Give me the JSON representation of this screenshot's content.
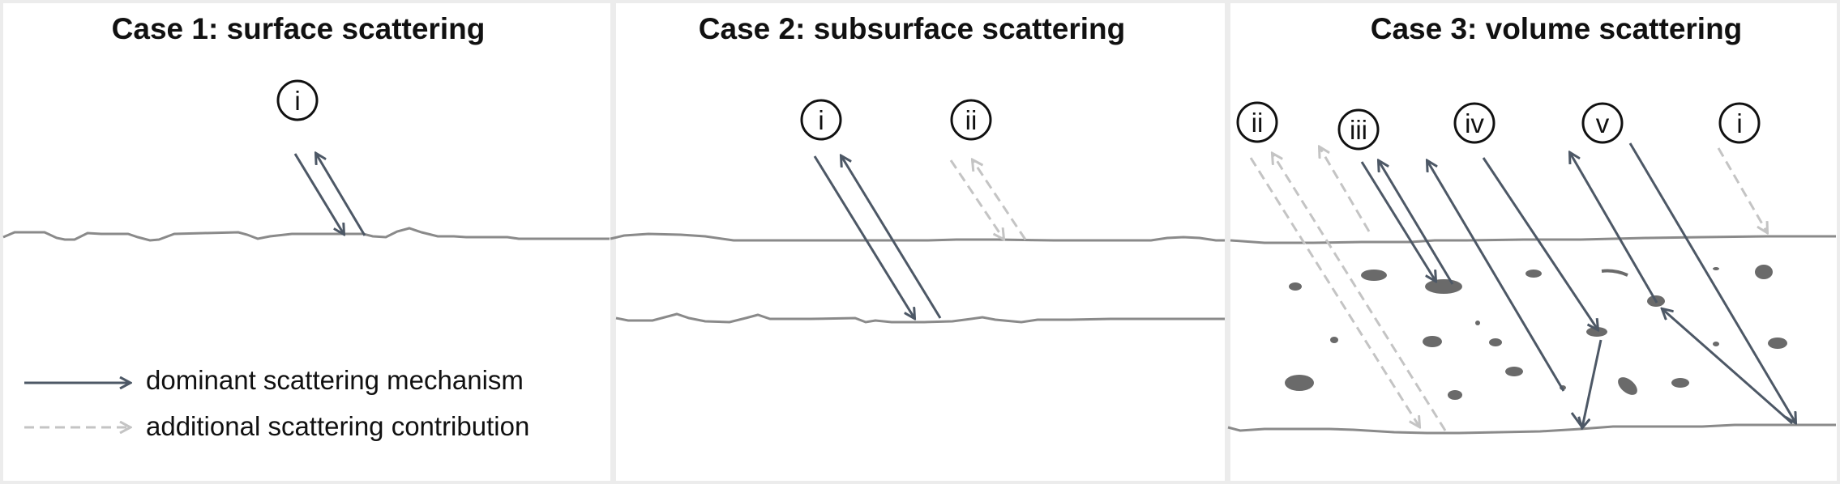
{
  "colors": {
    "background": "#ececec",
    "panel": "#ffffff",
    "dominant_arrow": "#4d5866",
    "additional_arrow": "#c4c4c4",
    "surface_line": "#8a8a8a",
    "scatterer": "#6a6a6a",
    "text": "#111111"
  },
  "panels": [
    {
      "title": "Case 1: surface scattering",
      "labels": [
        "i"
      ]
    },
    {
      "title": "Case 2: subsurface scattering",
      "labels": [
        "i",
        "ii"
      ]
    },
    {
      "title": "Case 3: volume scattering",
      "labels": [
        "ii",
        "iii",
        "iv",
        "v",
        "i"
      ]
    }
  ],
  "legend": {
    "dominant": "dominant scattering mechanism",
    "additional": "additional scattering contribution"
  }
}
